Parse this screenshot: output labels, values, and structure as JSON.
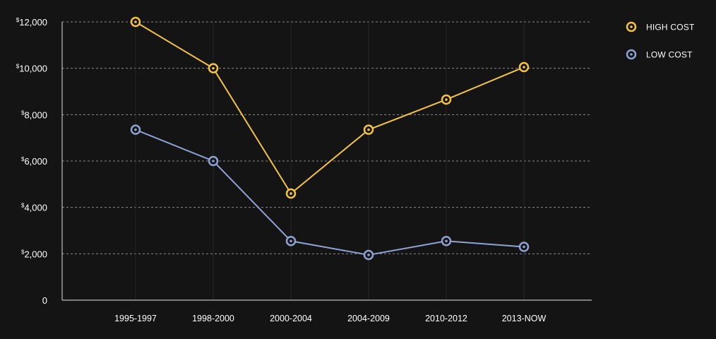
{
  "chart_data": {
    "type": "line",
    "categories": [
      "1995-1997",
      "1998-2000",
      "2000-2004",
      "2004-2009",
      "2010-2012",
      "2013-NOW"
    ],
    "series": [
      {
        "name": "HIGH COST",
        "color": "#f5c342",
        "values": [
          12000,
          10000,
          4600,
          7350,
          8650,
          10050
        ]
      },
      {
        "name": "LOW COST",
        "color": "#8fa2d4",
        "values": [
          7350,
          6000,
          2550,
          1950,
          2550,
          2300
        ]
      }
    ],
    "ylim": [
      0,
      12000
    ],
    "yticks": [
      {
        "value": 0,
        "currency": "",
        "label": "0"
      },
      {
        "value": 2000,
        "currency": "$",
        "label": "2,000"
      },
      {
        "value": 4000,
        "currency": "$",
        "label": "4,000"
      },
      {
        "value": 6000,
        "currency": "$",
        "label": "6,000"
      },
      {
        "value": 8000,
        "currency": "$",
        "label": "8,000"
      },
      {
        "value": 10000,
        "currency": "$",
        "label": "10,000"
      },
      {
        "value": 12000,
        "currency": "$",
        "label": "12,000"
      }
    ],
    "grid": "horizontal-dashed",
    "legend_position": "top-right",
    "background": "#141414",
    "axis_color": "#bdbdbd",
    "grid_color": "#8a8a8a"
  }
}
